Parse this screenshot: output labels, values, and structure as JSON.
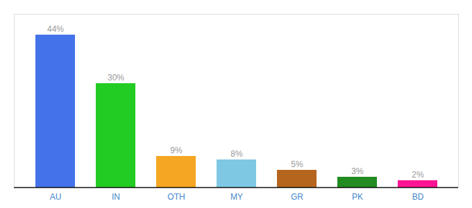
{
  "chart_data": {
    "type": "bar",
    "categories": [
      "AU",
      "IN",
      "OTH",
      "MY",
      "GR",
      "PK",
      "BD"
    ],
    "values": [
      44,
      30,
      9,
      8,
      5,
      3,
      2
    ],
    "value_labels": [
      "44%",
      "30%",
      "9%",
      "8%",
      "5%",
      "3%",
      "2%"
    ],
    "colors": [
      "#4472e8",
      "#22cc22",
      "#f5a623",
      "#7ec8e3",
      "#b5651d",
      "#228b22",
      "#ff1493"
    ],
    "ylim": [
      0,
      50
    ],
    "data_labels": true,
    "tick_labels": "x",
    "grid": false
  }
}
